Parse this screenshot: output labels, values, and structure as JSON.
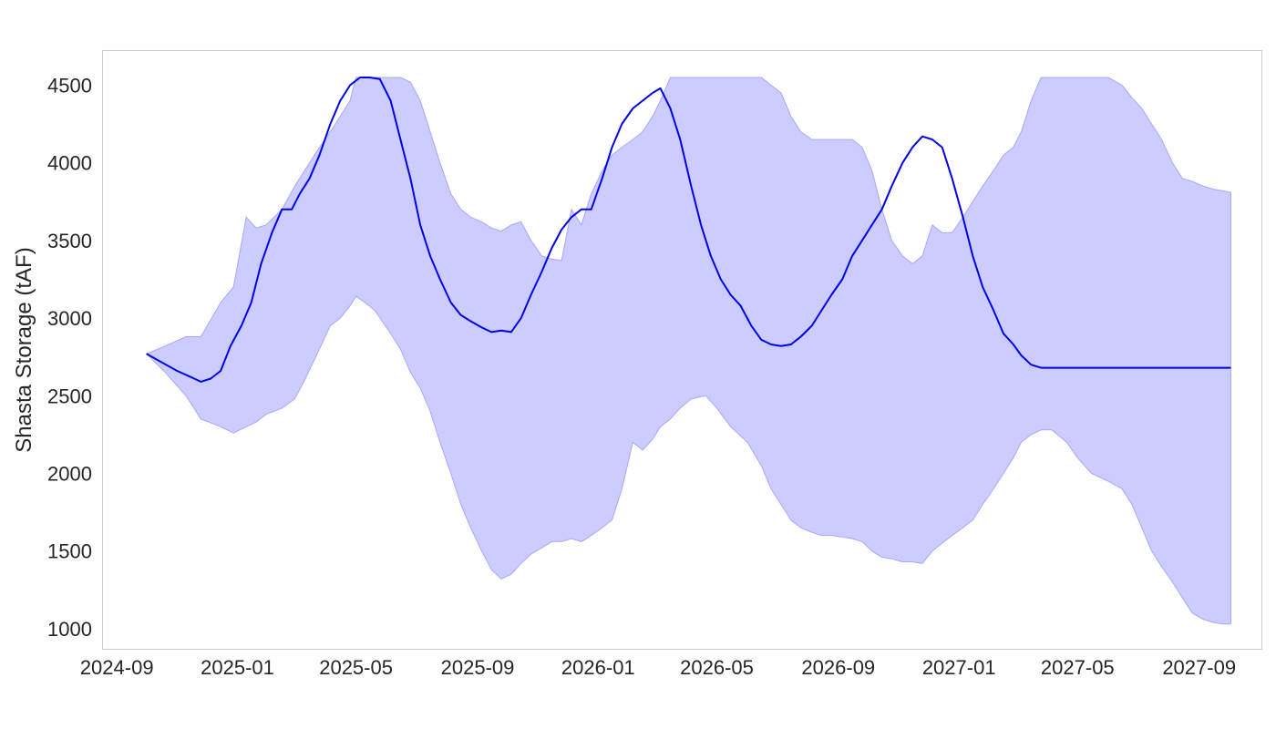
{
  "chart_data": {
    "type": "area",
    "title": "",
    "xlabel": "",
    "ylabel": "Shasta Storage (tAF)",
    "grid": false,
    "xlim": [
      "2024-08-18",
      "2027-11-03"
    ],
    "ylim": [
      870,
      4720
    ],
    "x_ticks": [
      "2024-09",
      "2025-01",
      "2025-05",
      "2025-09",
      "2026-01",
      "2026-05",
      "2026-09",
      "2027-01",
      "2027-05",
      "2027-09"
    ],
    "y_ticks": [
      "1000",
      "1500",
      "2000",
      "2500",
      "3000",
      "3500",
      "4000",
      "4500"
    ],
    "colors": {
      "line": "#0000ee",
      "band_fill": "#ccccff",
      "band_edge": "#a7a7ff",
      "frame": "#cccccc"
    },
    "band": {
      "x": [
        "2024-10-01",
        "2024-10-20",
        "2024-11-10",
        "2024-11-25",
        "2024-12-15",
        "2024-12-28",
        "2025-01-10",
        "2025-01-20",
        "2025-01-30",
        "2025-02-15",
        "2025-02-28",
        "2025-03-10",
        "2025-03-25",
        "2025-04-05",
        "2025-04-15",
        "2025-04-25",
        "2025-05-01",
        "2025-05-10",
        "2025-05-20",
        "2025-06-05",
        "2025-06-15",
        "2025-06-25",
        "2025-07-05",
        "2025-07-15",
        "2025-07-25",
        "2025-08-05",
        "2025-08-15",
        "2025-08-25",
        "2025-09-05",
        "2025-09-15",
        "2025-09-25",
        "2025-10-05",
        "2025-10-15",
        "2025-10-25",
        "2025-11-05",
        "2025-11-15",
        "2025-11-25",
        "2025-12-05",
        "2025-12-15",
        "2025-12-25",
        "2026-01-05",
        "2026-01-15",
        "2026-01-25",
        "2026-02-05",
        "2026-02-15",
        "2026-02-25",
        "2026-03-05",
        "2026-03-15",
        "2026-03-25",
        "2026-04-05",
        "2026-04-20",
        "2026-05-01",
        "2026-05-15",
        "2026-06-01",
        "2026-06-15",
        "2026-06-25",
        "2026-07-05",
        "2026-07-15",
        "2026-07-25",
        "2026-08-05",
        "2026-08-15",
        "2026-08-25",
        "2026-09-05",
        "2026-09-15",
        "2026-09-25",
        "2026-10-05",
        "2026-10-15",
        "2026-10-25",
        "2026-11-05",
        "2026-11-15",
        "2026-11-25",
        "2026-12-05",
        "2026-12-15",
        "2026-12-25",
        "2027-01-05",
        "2027-01-15",
        "2027-01-25",
        "2027-02-05",
        "2027-02-15",
        "2027-02-25",
        "2027-03-05",
        "2027-03-15",
        "2027-03-25",
        "2027-04-05",
        "2027-04-20",
        "2027-05-01",
        "2027-05-15",
        "2027-06-01",
        "2027-06-15",
        "2027-06-25",
        "2027-07-05",
        "2027-07-15",
        "2027-07-25",
        "2027-08-05",
        "2027-08-15",
        "2027-08-25",
        "2027-09-05",
        "2027-09-15",
        "2027-09-25",
        "2027-10-03"
      ],
      "upper": [
        2770,
        2820,
        2880,
        2880,
        3100,
        3200,
        3650,
        3580,
        3600,
        3700,
        3850,
        3950,
        4100,
        4200,
        4300,
        4400,
        4550,
        4550,
        4550,
        4550,
        4550,
        4520,
        4400,
        4200,
        4000,
        3800,
        3700,
        3650,
        3620,
        3580,
        3560,
        3600,
        3620,
        3500,
        3400,
        3380,
        3370,
        3700,
        3600,
        3800,
        3950,
        4050,
        4100,
        4150,
        4200,
        4300,
        4400,
        4550,
        4550,
        4550,
        4550,
        4550,
        4550,
        4550,
        4550,
        4500,
        4450,
        4300,
        4200,
        4150,
        4150,
        4150,
        4150,
        4150,
        4100,
        3950,
        3700,
        3500,
        3400,
        3350,
        3400,
        3600,
        3550,
        3550,
        3650,
        3750,
        3850,
        3950,
        4050,
        4100,
        4200,
        4400,
        4550,
        4550,
        4550,
        4550,
        4550,
        4550,
        4500,
        4420,
        4350,
        4250,
        4150,
        4000,
        3900,
        3880,
        3850,
        3830,
        3820,
        3810
      ],
      "lower": [
        2770,
        2650,
        2500,
        2350,
        2300,
        2260,
        2300,
        2330,
        2380,
        2420,
        2480,
        2600,
        2800,
        2950,
        3000,
        3080,
        3140,
        3100,
        3050,
        2900,
        2800,
        2650,
        2550,
        2400,
        2200,
        2000,
        1800,
        1650,
        1500,
        1380,
        1320,
        1350,
        1420,
        1480,
        1520,
        1560,
        1560,
        1580,
        1560,
        1600,
        1650,
        1700,
        1900,
        2200,
        2150,
        2220,
        2300,
        2350,
        2420,
        2480,
        2500,
        2420,
        2300,
        2200,
        2050,
        1900,
        1800,
        1700,
        1650,
        1620,
        1600,
        1600,
        1590,
        1580,
        1560,
        1500,
        1460,
        1450,
        1430,
        1430,
        1420,
        1500,
        1550,
        1600,
        1650,
        1700,
        1800,
        1900,
        2000,
        2100,
        2200,
        2250,
        2280,
        2280,
        2200,
        2100,
        2000,
        1950,
        1900,
        1800,
        1650,
        1500,
        1400,
        1300,
        1200,
        1100,
        1060,
        1040,
        1030,
        1030
      ]
    },
    "series": [
      {
        "x": [
          "2024-10-01",
          "2024-10-15",
          "2024-11-01",
          "2024-11-15",
          "2024-11-25",
          "2024-12-05",
          "2024-12-15",
          "2024-12-25",
          "2025-01-05",
          "2025-01-15",
          "2025-01-25",
          "2025-02-05",
          "2025-02-15",
          "2025-02-25",
          "2025-03-05",
          "2025-03-15",
          "2025-03-25",
          "2025-04-05",
          "2025-04-15",
          "2025-04-25",
          "2025-05-05",
          "2025-05-15",
          "2025-05-25",
          "2025-06-05",
          "2025-06-15",
          "2025-06-25",
          "2025-07-05",
          "2025-07-15",
          "2025-07-25",
          "2025-08-05",
          "2025-08-15",
          "2025-08-25",
          "2025-09-05",
          "2025-09-15",
          "2025-09-25",
          "2025-10-05",
          "2025-10-15",
          "2025-10-25",
          "2025-11-05",
          "2025-11-15",
          "2025-11-25",
          "2025-12-05",
          "2025-12-15",
          "2025-12-25",
          "2026-01-05",
          "2026-01-15",
          "2026-01-25",
          "2026-02-05",
          "2026-02-15",
          "2026-02-25",
          "2026-03-05",
          "2026-03-15",
          "2026-03-25",
          "2026-04-05",
          "2026-04-15",
          "2026-04-25",
          "2026-05-05",
          "2026-05-15",
          "2026-05-25",
          "2026-06-05",
          "2026-06-15",
          "2026-06-25",
          "2026-07-05",
          "2026-07-15",
          "2026-07-25",
          "2026-08-05",
          "2026-08-15",
          "2026-08-25",
          "2026-09-05",
          "2026-09-15",
          "2026-09-25",
          "2026-10-05",
          "2026-10-15",
          "2026-10-25",
          "2026-11-05",
          "2026-11-15",
          "2026-11-25",
          "2026-12-05",
          "2026-12-15",
          "2026-12-25",
          "2027-01-05",
          "2027-01-15",
          "2027-01-25",
          "2027-02-05",
          "2027-02-15",
          "2027-02-25",
          "2027-03-05",
          "2027-03-15",
          "2027-03-25",
          "2027-04-05",
          "2027-04-15",
          "2027-04-25",
          "2027-05-05",
          "2027-05-15",
          "2027-05-25",
          "2027-06-05",
          "2027-06-15",
          "2027-06-25",
          "2027-07-05",
          "2027-07-15",
          "2027-07-25",
          "2027-08-05",
          "2027-08-15",
          "2027-08-25",
          "2027-09-05",
          "2027-09-15",
          "2027-09-25",
          "2027-10-03"
        ],
        "values": [
          2770,
          2720,
          2660,
          2620,
          2590,
          2610,
          2660,
          2820,
          2950,
          3100,
          3350,
          3550,
          3700,
          3700,
          3800,
          3900,
          4050,
          4250,
          4400,
          4500,
          4550,
          4550,
          4540,
          4400,
          4150,
          3900,
          3600,
          3400,
          3250,
          3100,
          3020,
          2980,
          2940,
          2910,
          2920,
          2910,
          3000,
          3150,
          3300,
          3450,
          3570,
          3650,
          3700,
          3700,
          3900,
          4100,
          4250,
          4350,
          4400,
          4450,
          4480,
          4350,
          4150,
          3850,
          3600,
          3400,
          3250,
          3150,
          3080,
          2950,
          2860,
          2830,
          2820,
          2830,
          2880,
          2950,
          3050,
          3150,
          3250,
          3400,
          3500,
          3600,
          3700,
          3850,
          4000,
          4100,
          4170,
          4150,
          4100,
          3900,
          3650,
          3400,
          3200,
          3050,
          2900,
          2830,
          2760,
          2700,
          2680,
          2680,
          2680,
          2680,
          2680,
          2680,
          2680,
          2680,
          2680,
          2680,
          2680,
          2680,
          2680,
          2680,
          2680,
          2680,
          2680,
          2680,
          2680,
          2680
        ]
      }
    ]
  }
}
